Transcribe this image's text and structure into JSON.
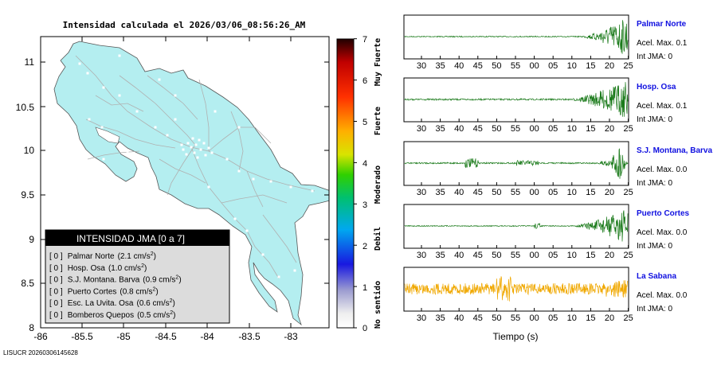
{
  "map": {
    "title": "Intensidad calculada el 2026/03/06_08:56:26_AM",
    "x_ticks": [
      "-86",
      "-85.5",
      "-85",
      "-84.5",
      "-84",
      "-83.5",
      "-83"
    ],
    "y_ticks": [
      "11",
      "10.5",
      "10",
      "9.5",
      "9",
      "8.5",
      "8"
    ],
    "footer": "LISUCR 20260306145628",
    "land_color": "#b4eef0",
    "road_color": "#b0b0b0"
  },
  "legend": {
    "title": "INTENSIDAD JMA [0 a 7]",
    "items": [
      {
        "bracket": "[ 0 ]",
        "name": "Palmar Norte",
        "value": "(2.1 cm/s",
        "exp": "2",
        "close": ")"
      },
      {
        "bracket": "[ 0 ]",
        "name": "Hosp. Osa",
        "value": "(1.0 cm/s",
        "exp": "2",
        "close": ")"
      },
      {
        "bracket": "[ 0 ]",
        "name": "S.J. Montana. Barva",
        "value": "(0.9 cm/s",
        "exp": "2",
        "close": ")"
      },
      {
        "bracket": "[ 0 ]",
        "name": "Puerto Cortes",
        "value": "(0.8 cm/s",
        "exp": "2",
        "close": ")"
      },
      {
        "bracket": "[ 0 ]",
        "name": "Esc. La Uvita. Osa",
        "value": "(0.6 cm/s",
        "exp": "2",
        "close": ")"
      },
      {
        "bracket": "[ 0 ]",
        "name": "Bomberos Quepos",
        "value": "(0.5 cm/s",
        "exp": "2",
        "close": ")"
      }
    ]
  },
  "scale": {
    "ticks": [
      "7",
      "6",
      "5",
      "4",
      "3",
      "2",
      "1",
      "0"
    ],
    "labels": [
      "Muy Fuerte",
      "Fuerte",
      "Moderado",
      "Debil",
      "No sentido"
    ]
  },
  "seismograms": {
    "time_ticks": [
      "30",
      "35",
      "40",
      "45",
      "50",
      "55",
      "00",
      "05",
      "10",
      "15",
      "20",
      "25"
    ],
    "xlabel": "Tiempo (s)",
    "stations": [
      {
        "name": "Palmar Norte",
        "accel": "Acel. Max. 0.1",
        "jma": "Int JMA: 0",
        "color": "#1a7a1a"
      },
      {
        "name": "Hosp. Osa",
        "accel": "Acel. Max. 0.1",
        "jma": "Int JMA: 0",
        "color": "#1a7a1a"
      },
      {
        "name": "S.J. Montana, Barva",
        "accel": "Acel. Max. 0.0",
        "jma": "Int JMA: 0",
        "color": "#1a7a1a"
      },
      {
        "name": "Puerto Cortes",
        "accel": "Acel. Max. 0.0",
        "jma": "Int JMA: 0",
        "color": "#1a7a1a"
      },
      {
        "name": "La Sabana",
        "accel": "Acel. Max. 0.0",
        "jma": "Int JMA: 0",
        "color": "#f0a800"
      }
    ],
    "station_name_color": "#1010e0"
  }
}
